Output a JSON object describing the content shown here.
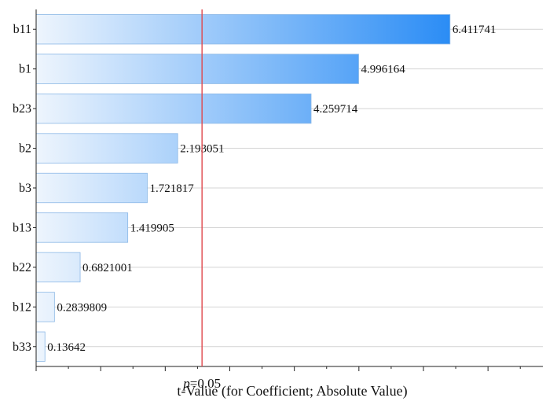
{
  "chart_data": {
    "type": "bar",
    "orientation": "horizontal",
    "categories": [
      "b11",
      "b1",
      "b23",
      "b2",
      "b3",
      "b13",
      "b22",
      "b12",
      "b33"
    ],
    "values": [
      6.411741,
      4.996164,
      4.259714,
      2.193051,
      1.721817,
      1.419905,
      0.6821001,
      0.2839809,
      0.13642
    ],
    "value_labels": [
      "6.411741",
      "4.996164",
      "4.259714",
      "2.193051",
      "1.721817",
      "1.419905",
      "0.6821001",
      "0.2839809",
      "0.13642"
    ],
    "xlim": [
      0,
      7.85
    ],
    "xlabel": "t-Value (for Coefficient; Absolute Value)",
    "ylabel": "",
    "title": "",
    "reference_line": {
      "value": 2.57,
      "label_prefix": "p",
      "label_suffix": "=0.05",
      "color": "#e0474c"
    },
    "grid": true,
    "bar_gradient": {
      "start": "#eef5fd",
      "end": "#2a8cf5",
      "stroke": "#8cb8e6"
    }
  }
}
